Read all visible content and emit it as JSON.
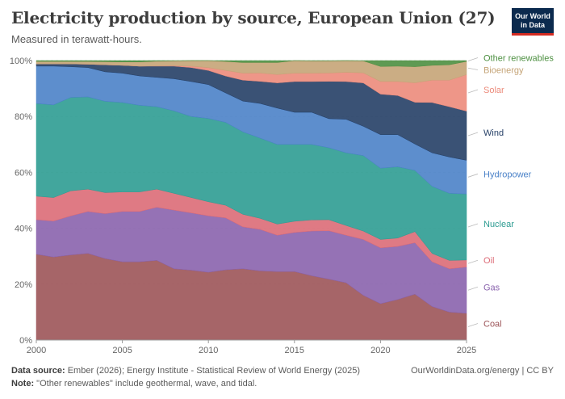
{
  "header": {
    "title": "Electricity production by source, European Union (27)",
    "subtitle": "Measured in terawatt-hours."
  },
  "logo": {
    "line1": "Our World",
    "line2": "in Data"
  },
  "footer": {
    "source_label": "Data source:",
    "source_text": "Ember (2026); Energy Institute - Statistical Review of World Energy (2025)",
    "note_label": "Note:",
    "note_text": "\"Other renewables\" include geothermal, wave, and tidal.",
    "right_text": "OurWorldinData.org/energy | CC BY"
  },
  "chart_data": {
    "type": "area",
    "stacked": true,
    "normalized": true,
    "x": [
      2000,
      2001,
      2002,
      2003,
      2004,
      2005,
      2006,
      2007,
      2008,
      2009,
      2010,
      2011,
      2012,
      2013,
      2014,
      2015,
      2016,
      2017,
      2018,
      2019,
      2020,
      2021,
      2022,
      2023,
      2024,
      2025
    ],
    "ylim": [
      0,
      100
    ],
    "yticks": [
      "0%",
      "20%",
      "40%",
      "60%",
      "80%",
      "100%"
    ],
    "xticks": [
      2000,
      2005,
      2010,
      2015,
      2020,
      2025
    ],
    "grid": true,
    "legend_placement": "right, inline labels",
    "series": [
      {
        "name": "Coal",
        "color": "#9c5458",
        "values": [
          31,
          30,
          30.5,
          31,
          29,
          28,
          28,
          28.5,
          25.5,
          25,
          24,
          25,
          25.5,
          25,
          24.5,
          24.5,
          23,
          22,
          20.5,
          16,
          13,
          14.5,
          16.5,
          12,
          10,
          9.5
        ]
      },
      {
        "name": "Gas",
        "color": "#8a63ad",
        "values": [
          12.5,
          13,
          14,
          15,
          16,
          18,
          18,
          19,
          21,
          20.5,
          20,
          18.5,
          15,
          15,
          13,
          14,
          16,
          17.5,
          17,
          20,
          20,
          19,
          18.5,
          16,
          15.5,
          16.5
        ]
      },
      {
        "name": "Oil",
        "color": "#dc6b77",
        "values": [
          8.5,
          8.5,
          9,
          8,
          7.5,
          7,
          7,
          6.5,
          6,
          5.5,
          5,
          4.5,
          4.5,
          4,
          4,
          4,
          4,
          4,
          3.5,
          3,
          3,
          3,
          4,
          3,
          3,
          2.5
        ]
      },
      {
        "name": "Nuclear",
        "color": "#2d9c92",
        "values": [
          33.5,
          33.5,
          33.5,
          33,
          32.5,
          32,
          31,
          29.5,
          29.5,
          29,
          29.5,
          29.5,
          29.5,
          29,
          28.5,
          27.5,
          27,
          26,
          26,
          27,
          25.5,
          25.5,
          22,
          24,
          24,
          23.5
        ]
      },
      {
        "name": "Hydropower",
        "color": "#4b82c8",
        "values": [
          13.5,
          14,
          11,
          10.5,
          10.5,
          10.5,
          10.5,
          10.5,
          11.5,
          12.5,
          12,
          10.5,
          11,
          12.5,
          13,
          11.5,
          11.5,
          10.5,
          12,
          10.5,
          12,
          11.5,
          9.5,
          12,
          13,
          12
        ]
      },
      {
        "name": "Wind",
        "color": "#253f66",
        "values": [
          0.8,
          0.8,
          1,
          1.2,
          2.5,
          2.8,
          3.5,
          4,
          4.5,
          5,
          5,
          6,
          7.5,
          8,
          9,
          11,
          11,
          13.5,
          13.5,
          15.5,
          14.5,
          14,
          15,
          18,
          18,
          17.5
        ]
      },
      {
        "name": "Solar",
        "color": "#ec8b7b",
        "values": [
          0,
          0,
          0,
          0,
          0,
          0,
          0,
          0.1,
          0.2,
          0.5,
          1,
          2,
          2.5,
          3,
          3,
          3,
          3,
          3,
          3.3,
          3.6,
          4.5,
          5,
          7,
          8,
          9.5,
          13
        ]
      },
      {
        "name": "Bioenergy",
        "color": "#c5a477",
        "values": [
          0.9,
          0.9,
          0.9,
          1,
          1.1,
          1.2,
          1.5,
          1.7,
          1.7,
          2,
          2.5,
          3.2,
          3.8,
          3.8,
          4.3,
          4.5,
          4.4,
          4.4,
          4.2,
          4.3,
          5.4,
          5.5,
          5.8,
          5.3,
          5.5,
          4.7
        ]
      },
      {
        "name": "Other renewables",
        "color": "#4c8f40",
        "values": [
          0.3,
          0.3,
          0.3,
          0.3,
          0.4,
          0.5,
          0.5,
          0.2,
          0.1,
          0,
          0,
          0.3,
          0.7,
          0.7,
          0.7,
          0,
          0.1,
          0.1,
          0,
          0.1,
          2.1,
          2,
          2.2,
          1.7,
          1.5,
          0.3
        ]
      }
    ]
  }
}
